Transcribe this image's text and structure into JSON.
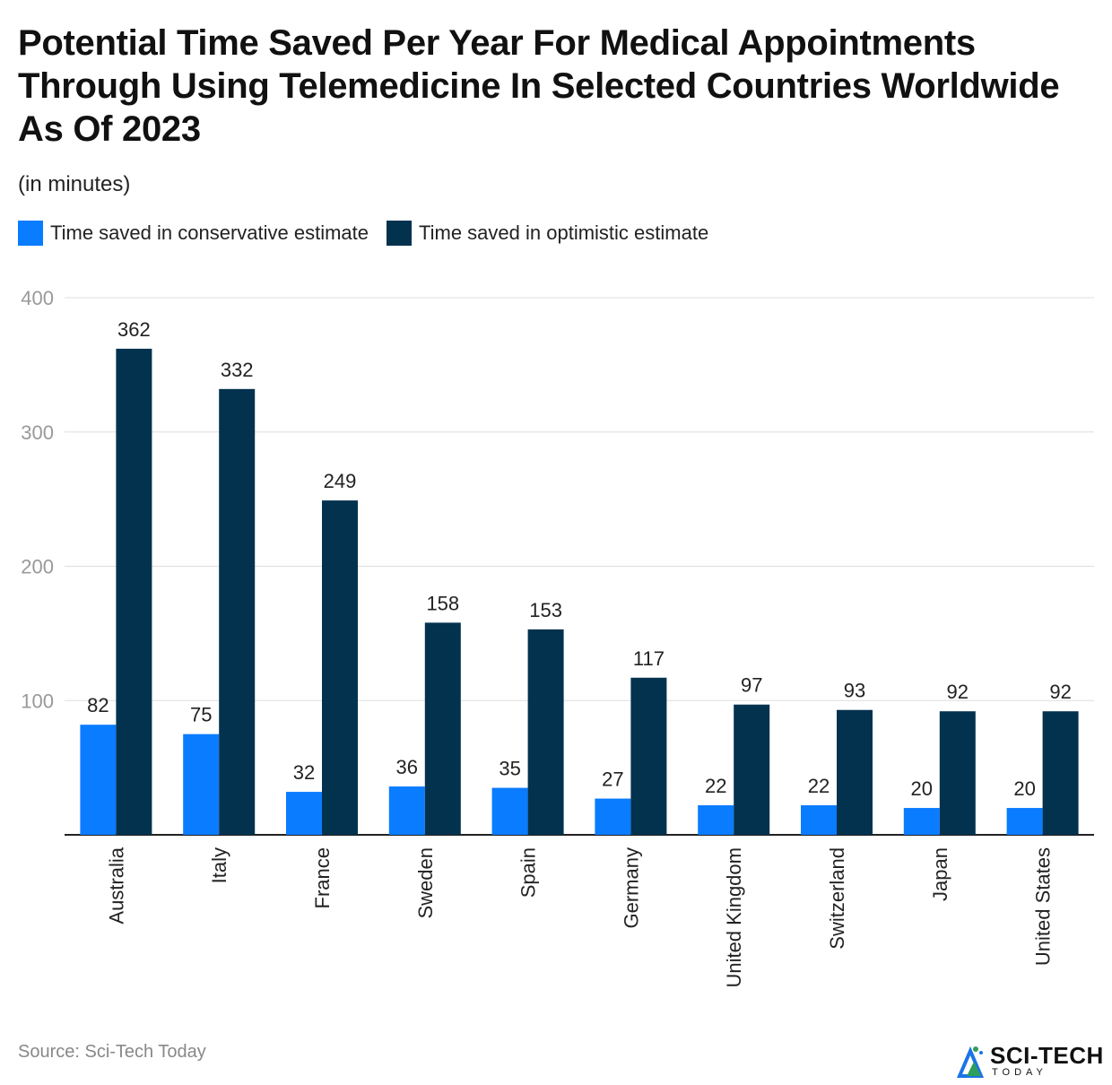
{
  "title": "Potential Time Saved Per Year For Medical Appointments Through Using Telemedicine In Selected Countries Worldwide As Of 2023",
  "subtitle": "(in minutes)",
  "source": "Source: Sci-Tech Today",
  "brand": {
    "name": "SCI-TECH",
    "sub": "TODAY",
    "icon": "sci-tech-logo-icon"
  },
  "colors": {
    "conservative": "#0a7cff",
    "optimistic": "#03324f",
    "grid": "#dddddd",
    "axis": "#222222",
    "tick": "#999999"
  },
  "chart_data": {
    "type": "bar",
    "categories": [
      "Australia",
      "Italy",
      "France",
      "Sweden",
      "Spain",
      "Germany",
      "United Kingdom",
      "Switzerland",
      "Japan",
      "United States"
    ],
    "series": [
      {
        "name": "Time saved in conservative estimate",
        "values": [
          82,
          75,
          32,
          36,
          35,
          27,
          22,
          22,
          20,
          20
        ]
      },
      {
        "name": "Time saved in optimistic estimate",
        "values": [
          362,
          332,
          249,
          158,
          153,
          117,
          97,
          93,
          92,
          92
        ]
      }
    ],
    "ylim": [
      0,
      400
    ],
    "yticks": [
      100,
      200,
      300,
      400
    ],
    "grid": true,
    "legend_position": "top-left",
    "data_labels": true
  }
}
